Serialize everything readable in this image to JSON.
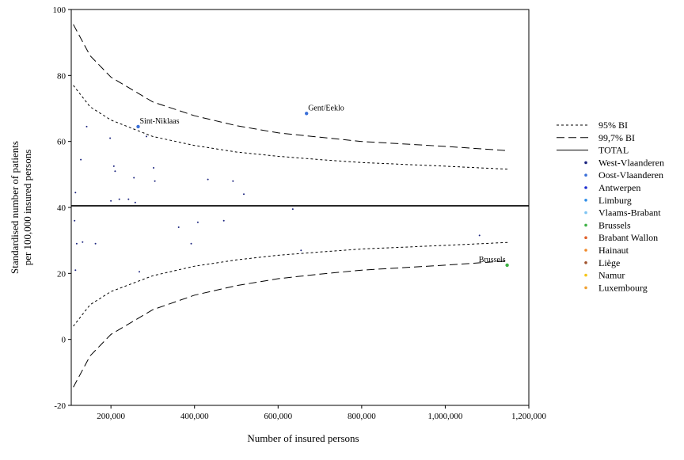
{
  "chart_data": {
    "type": "scatter",
    "title": "",
    "xlabel": "Number of insured persons",
    "ylabel_lines": [
      "Standardised number of patients",
      "per 100,000 insured persons"
    ],
    "xlim": [
      105000,
      1200000
    ],
    "ylim": [
      -20,
      100
    ],
    "x_ticks": [
      200000,
      400000,
      600000,
      800000,
      1000000,
      1200000
    ],
    "x_tick_labels": [
      "200,000",
      "400,000",
      "600,000",
      "800,000",
      "1,000,000",
      "1,200,000"
    ],
    "y_ticks": [
      -20,
      0,
      20,
      40,
      60,
      80,
      100
    ],
    "y_tick_labels": [
      "-20",
      "0",
      "20",
      "40",
      "60",
      "80",
      "100"
    ],
    "grid": false,
    "legend_position": "right",
    "legend": [
      {
        "label": "95% BI",
        "kind": "line",
        "dash": "short",
        "color": "#000000"
      },
      {
        "label": "99,7% BI",
        "kind": "line",
        "dash": "long",
        "color": "#000000"
      },
      {
        "label": "TOTAL",
        "kind": "line",
        "dash": "solid",
        "color": "#000000"
      },
      {
        "label": "West-Vlaanderen",
        "kind": "marker",
        "color": "#1a237e"
      },
      {
        "label": "Oost-Vlaanderen",
        "kind": "marker",
        "color": "#3a6fd8"
      },
      {
        "label": "Antwerpen",
        "kind": "marker",
        "color": "#1f2fd0"
      },
      {
        "label": "Limburg",
        "kind": "marker",
        "color": "#2f8ee8"
      },
      {
        "label": "Vlaams-Brabant",
        "kind": "marker",
        "color": "#7fc4f2"
      },
      {
        "label": "Brussels",
        "kind": "marker",
        "color": "#3cb043"
      },
      {
        "label": "Brabant Wallon",
        "kind": "marker",
        "color": "#e0602a"
      },
      {
        "label": "Hainaut",
        "kind": "marker",
        "color": "#f08a2a"
      },
      {
        "label": "Liège",
        "kind": "marker",
        "color": "#a0522d"
      },
      {
        "label": "Namur",
        "kind": "marker",
        "color": "#f5c518"
      },
      {
        "label": "Luxembourg",
        "kind": "marker",
        "color": "#f0a030"
      }
    ],
    "total_line": 40.5,
    "limits": {
      "ci95_upper": [
        [
          110000,
          77
        ],
        [
          150000,
          70.5
        ],
        [
          200000,
          66.5
        ],
        [
          300000,
          61.5
        ],
        [
          400000,
          58.8
        ],
        [
          500000,
          56.8
        ],
        [
          600000,
          55.5
        ],
        [
          700000,
          54.5
        ],
        [
          800000,
          53.6
        ],
        [
          1000000,
          52.5
        ],
        [
          1150000,
          51.6
        ]
      ],
      "ci95_lower": [
        [
          110000,
          4
        ],
        [
          150000,
          10.5
        ],
        [
          200000,
          14.5
        ],
        [
          300000,
          19.3
        ],
        [
          400000,
          22.2
        ],
        [
          500000,
          24.1
        ],
        [
          600000,
          25.5
        ],
        [
          700000,
          26.5
        ],
        [
          800000,
          27.4
        ],
        [
          1000000,
          28.5
        ],
        [
          1150000,
          29.4
        ]
      ],
      "ci997_upper": [
        [
          110000,
          95.5
        ],
        [
          150000,
          86
        ],
        [
          200000,
          79.5
        ],
        [
          300000,
          72
        ],
        [
          400000,
          67.8
        ],
        [
          500000,
          64.8
        ],
        [
          600000,
          62.6
        ],
        [
          700000,
          61.3
        ],
        [
          800000,
          60
        ],
        [
          1000000,
          58.5
        ],
        [
          1150000,
          57.2
        ]
      ],
      "ci997_lower": [
        [
          110000,
          -14.5
        ],
        [
          150000,
          -5
        ],
        [
          200000,
          1.5
        ],
        [
          300000,
          9
        ],
        [
          400000,
          13.4
        ],
        [
          500000,
          16.3
        ],
        [
          600000,
          18.4
        ],
        [
          700000,
          19.8
        ],
        [
          800000,
          21
        ],
        [
          1000000,
          22.5
        ],
        [
          1150000,
          23.8
        ]
      ]
    },
    "points": [
      {
        "x": 115000,
        "y": 44.5,
        "region": "West-Vlaanderen"
      },
      {
        "x": 113000,
        "y": 36,
        "region": "West-Vlaanderen"
      },
      {
        "x": 115000,
        "y": 21,
        "region": "West-Vlaanderen"
      },
      {
        "x": 118000,
        "y": 29,
        "region": "West-Vlaanderen"
      },
      {
        "x": 128000,
        "y": 54.5,
        "region": "West-Vlaanderen"
      },
      {
        "x": 132000,
        "y": 29.5,
        "region": "West-Vlaanderen"
      },
      {
        "x": 142000,
        "y": 64.5,
        "region": "West-Vlaanderen"
      },
      {
        "x": 163000,
        "y": 29,
        "region": "West-Vlaanderen"
      },
      {
        "x": 198000,
        "y": 61,
        "region": "West-Vlaanderen"
      },
      {
        "x": 200000,
        "y": 42,
        "region": "West-Vlaanderen"
      },
      {
        "x": 207000,
        "y": 52.5,
        "region": "West-Vlaanderen"
      },
      {
        "x": 210000,
        "y": 51,
        "region": "West-Vlaanderen"
      },
      {
        "x": 220000,
        "y": 42.5,
        "region": "West-Vlaanderen"
      },
      {
        "x": 242000,
        "y": 42.5,
        "region": "West-Vlaanderen"
      },
      {
        "x": 255000,
        "y": 49,
        "region": "West-Vlaanderen"
      },
      {
        "x": 258000,
        "y": 41.5,
        "region": "West-Vlaanderen"
      },
      {
        "x": 268000,
        "y": 20.5,
        "region": "West-Vlaanderen"
      },
      {
        "x": 285000,
        "y": 61.5,
        "region": "West-Vlaanderen"
      },
      {
        "x": 302000,
        "y": 52,
        "region": "West-Vlaanderen"
      },
      {
        "x": 305000,
        "y": 48,
        "region": "West-Vlaanderen"
      },
      {
        "x": 362000,
        "y": 34,
        "region": "West-Vlaanderen"
      },
      {
        "x": 392000,
        "y": 29,
        "region": "West-Vlaanderen"
      },
      {
        "x": 408000,
        "y": 35.5,
        "region": "West-Vlaanderen"
      },
      {
        "x": 432000,
        "y": 48.5,
        "region": "West-Vlaanderen"
      },
      {
        "x": 470000,
        "y": 36,
        "region": "West-Vlaanderen"
      },
      {
        "x": 492000,
        "y": 48,
        "region": "West-Vlaanderen"
      },
      {
        "x": 518000,
        "y": 44,
        "region": "West-Vlaanderen"
      },
      {
        "x": 635000,
        "y": 39.5,
        "region": "West-Vlaanderen"
      },
      {
        "x": 655000,
        "y": 27,
        "region": "West-Vlaanderen"
      },
      {
        "x": 1082000,
        "y": 31.5,
        "region": "West-Vlaanderen"
      },
      {
        "x": 265000,
        "y": 64.5,
        "region": "Oost-Vlaanderen",
        "label": "Sint-Niklaas"
      },
      {
        "x": 668000,
        "y": 68.5,
        "region": "Oost-Vlaanderen",
        "label": "Gent/Eeklo"
      },
      {
        "x": 1148000,
        "y": 22.5,
        "region": "Brussels",
        "label": "Brussels"
      }
    ]
  }
}
